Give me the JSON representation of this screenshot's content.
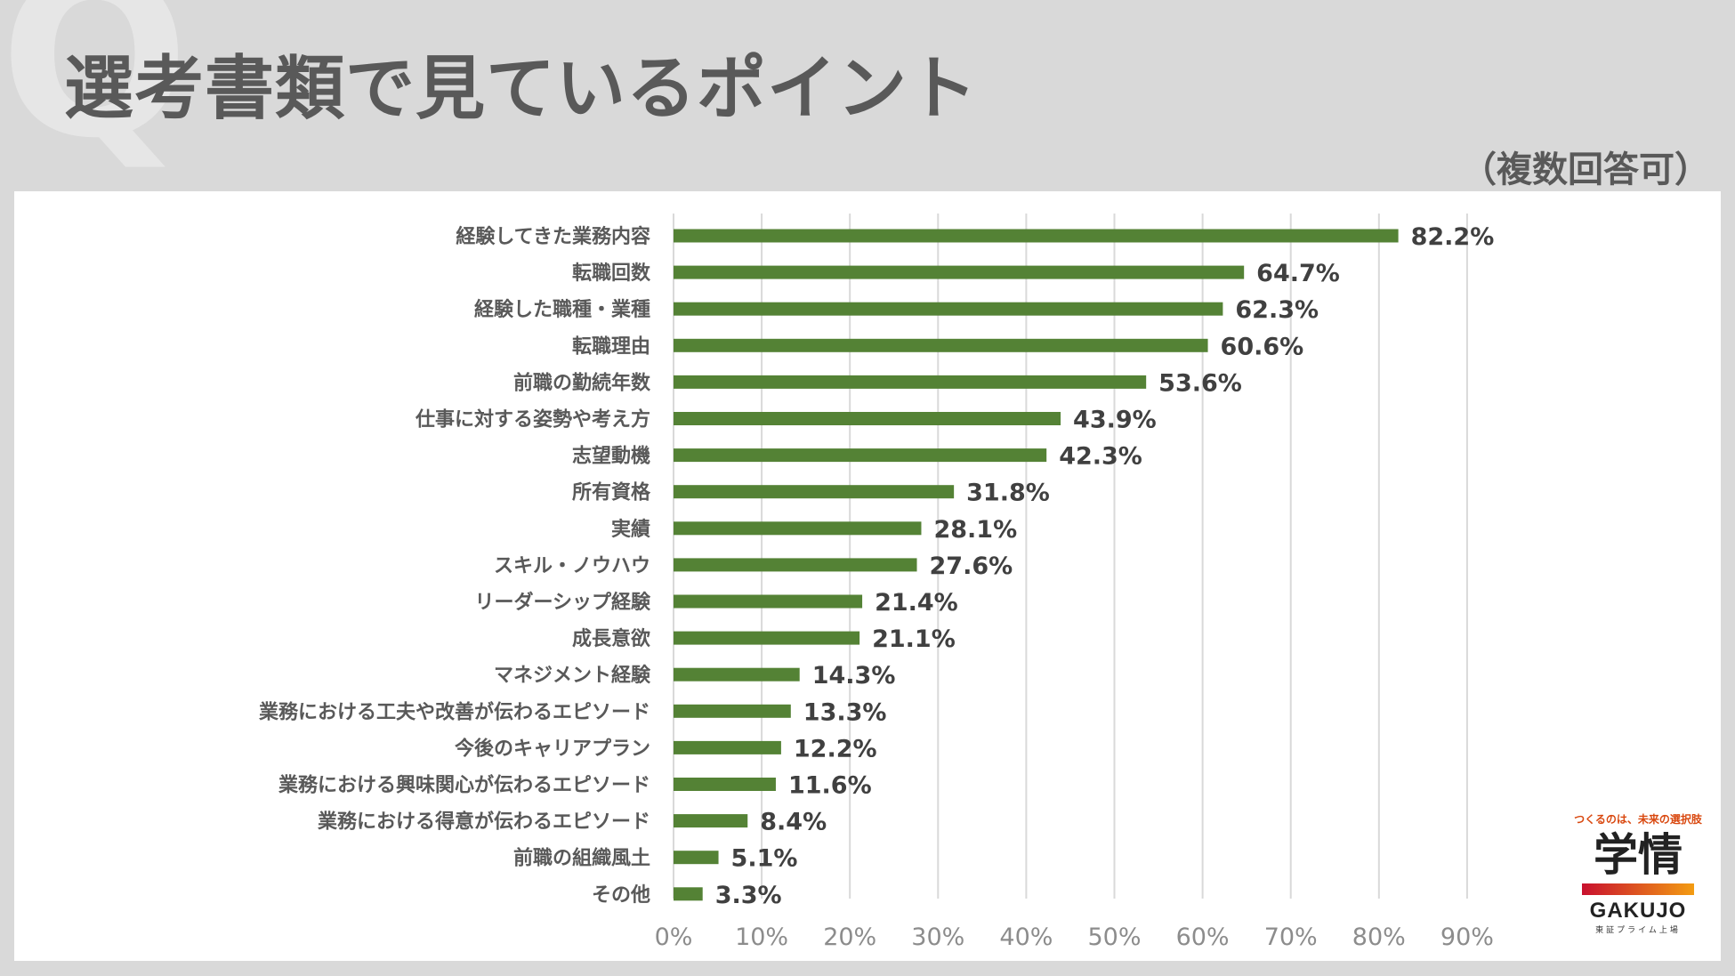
{
  "header": {
    "deco_letter": "Q",
    "title": "選考書類で見ているポイント",
    "note": "（複数回答可）"
  },
  "colors": {
    "background": "#d9d9d9",
    "bar": "#548235",
    "grid": "#d9d9d9"
  },
  "chart_data": {
    "type": "bar",
    "orientation": "horizontal",
    "grid": true,
    "xlim": [
      0,
      90
    ],
    "xticks": [
      "0%",
      "10%",
      "20%",
      "30%",
      "40%",
      "50%",
      "60%",
      "70%",
      "80%",
      "90%"
    ],
    "categories": [
      "経験してきた業務内容",
      "転職回数",
      "経験した職種・業種",
      "転職理由",
      "前職の勤続年数",
      "仕事に対する姿勢や考え方",
      "志望動機",
      "所有資格",
      "実績",
      "スキル・ノウハウ",
      "リーダーシップ経験",
      "成長意欲",
      "マネジメント経験",
      "業務における工夫や改善が伝わるエピソード",
      "今後のキャリアプラン",
      "業務における興味関心が伝わるエピソード",
      "業務における得意が伝わるエピソード",
      "前職の組織風土",
      "その他"
    ],
    "values": [
      82.2,
      64.7,
      62.3,
      60.6,
      53.6,
      43.9,
      42.3,
      31.8,
      28.1,
      27.6,
      21.4,
      21.1,
      14.3,
      13.3,
      12.2,
      11.6,
      8.4,
      5.1,
      3.3
    ],
    "value_labels": [
      "82.2%",
      "64.7%",
      "62.3%",
      "60.6%",
      "53.6%",
      "43.9%",
      "42.3%",
      "31.8%",
      "28.1%",
      "27.6%",
      "21.4%",
      "21.1%",
      "14.3%",
      "13.3%",
      "12.2%",
      "11.6%",
      "8.4%",
      "5.1%",
      "3.3%"
    ]
  },
  "logo": {
    "tagline": "つくるのは、未来の選択肢",
    "kanji": "学情",
    "english": "GAKUJO",
    "sub": "東証プライム上場"
  }
}
